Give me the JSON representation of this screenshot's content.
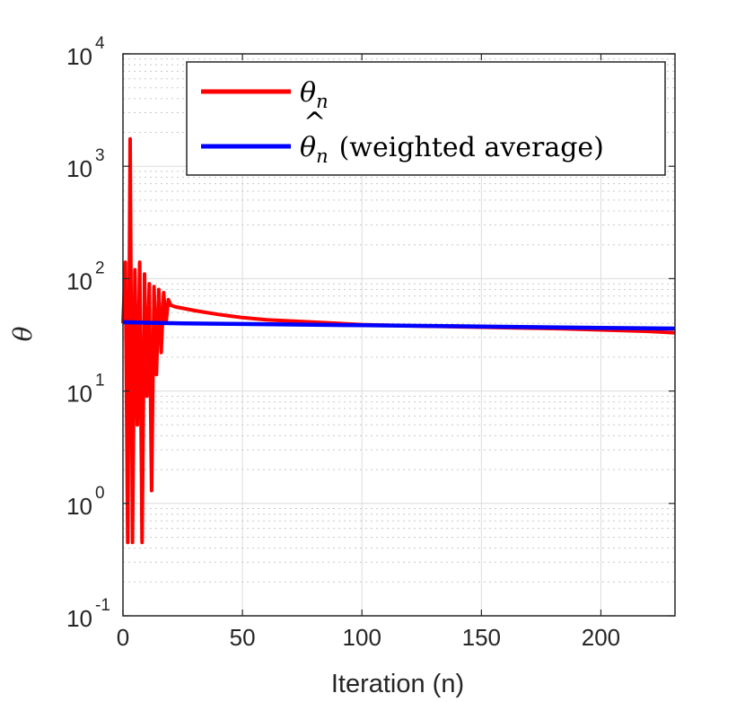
{
  "chart_data": {
    "type": "line",
    "title": "",
    "xlabel": "Iteration (n)",
    "ylabel": "θ",
    "xlim": [
      0,
      231
    ],
    "ylim": [
      0.1,
      10000
    ],
    "yscale": "log",
    "grid": true,
    "legend_position": "top-right",
    "xticks": [
      {
        "value": 0,
        "label": "0"
      },
      {
        "value": 50,
        "label": "50"
      },
      {
        "value": 100,
        "label": "100"
      },
      {
        "value": 150,
        "label": "150"
      },
      {
        "value": 200,
        "label": "200"
      }
    ],
    "yticks": [
      {
        "value": 0.1,
        "base": "10",
        "exp": "-1"
      },
      {
        "value": 1,
        "base": "10",
        "exp": "0"
      },
      {
        "value": 10,
        "base": "10",
        "exp": "1"
      },
      {
        "value": 100,
        "base": "10",
        "exp": "2"
      },
      {
        "value": 1000,
        "base": "10",
        "exp": "3"
      },
      {
        "value": 10000,
        "base": "10",
        "exp": "4"
      }
    ],
    "series": [
      {
        "name": "θ_n",
        "legend_math": "θ",
        "legend_sub": "n",
        "legend_rest": "",
        "color": "#ff0000",
        "x": [
          0,
          1,
          2,
          3,
          4,
          5,
          6,
          7,
          8,
          9,
          10,
          11,
          12,
          13,
          14,
          15,
          16,
          17,
          18,
          19,
          20,
          22,
          24,
          26,
          30,
          40,
          50,
          60,
          80,
          100,
          120,
          150,
          180,
          200,
          220,
          231
        ],
        "values": [
          40,
          140,
          0.45,
          1750,
          0.45,
          120,
          5,
          140,
          0.45,
          110,
          9,
          90,
          1.3,
          85,
          14,
          80,
          22,
          75,
          40,
          65,
          58,
          56,
          55,
          54,
          52,
          48,
          45,
          43,
          41,
          39,
          38,
          37,
          36,
          35,
          34,
          33
        ]
      },
      {
        "name": "weighted average",
        "legend_math": "θ",
        "legend_sub": "n",
        "legend_rest": "(weighted average)",
        "color": "#0000ff",
        "x": [
          0,
          10,
          25,
          50,
          75,
          100,
          125,
          150,
          175,
          200,
          231
        ],
        "values": [
          41,
          40.5,
          40,
          39.5,
          39,
          38.5,
          38,
          37.5,
          37,
          36.5,
          36
        ]
      }
    ]
  }
}
